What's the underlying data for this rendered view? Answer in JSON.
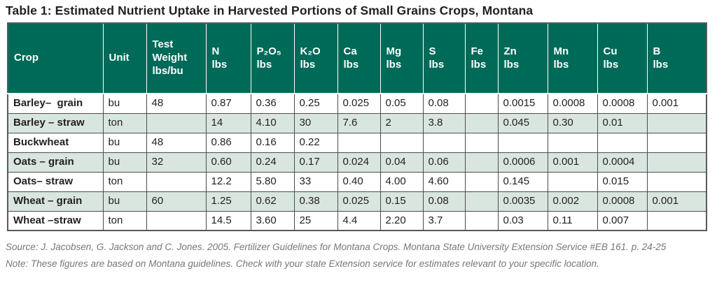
{
  "title": "Table 1: Estimated Nutrient Uptake in Harvested Portions of Small Grains Crops, Montana",
  "colors": {
    "header_bg": "#006a58",
    "stripe_bg": "#d9e6e0",
    "grid_border": "#4c4c4e",
    "outer_border": "#58595b",
    "title_text": "#231f20",
    "footer_text": "#77787b"
  },
  "table": {
    "columns": [
      {
        "id": "crop",
        "label": "Crop"
      },
      {
        "id": "unit",
        "label": "Unit"
      },
      {
        "id": "test_weight",
        "label": "Test\nWeight\nlbs/bu"
      },
      {
        "id": "n",
        "label": "N\nlbs"
      },
      {
        "id": "p2o5",
        "label": "P₂O₅\nlbs"
      },
      {
        "id": "k2o",
        "label": "K₂O\nlbs"
      },
      {
        "id": "ca",
        "label": "Ca\nlbs"
      },
      {
        "id": "mg",
        "label": "Mg\nlbs"
      },
      {
        "id": "s",
        "label": "S\nlbs"
      },
      {
        "id": "fe",
        "label": "Fe\nlbs"
      },
      {
        "id": "zn",
        "label": "Zn\nlbs"
      },
      {
        "id": "mn",
        "label": "Mn\nlbs"
      },
      {
        "id": "cu",
        "label": "Cu\nlbs"
      },
      {
        "id": "b",
        "label": "B\nlbs"
      }
    ],
    "rows": [
      {
        "cells": [
          "Barley–  grain",
          "bu",
          "48",
          "0.87",
          "0.36",
          "0.25",
          "0.025",
          "0.05",
          "0.08",
          "",
          "0.0015",
          "0.0008",
          "0.0008",
          "0.001"
        ]
      },
      {
        "cells": [
          "Barley – straw",
          "ton",
          "",
          "14",
          "4.10",
          "30",
          "7.6",
          "2",
          "3.8",
          "",
          "0.045",
          "0.30",
          "0.01",
          ""
        ]
      },
      {
        "cells": [
          "Buckwheat",
          "bu",
          "48",
          "0.86",
          "0.16",
          "0.22",
          "",
          "",
          "",
          "",
          "",
          "",
          "",
          ""
        ]
      },
      {
        "cells": [
          "Oats – grain",
          "bu",
          "32",
          "0.60",
          "0.24",
          "0.17",
          "0.024",
          "0.04",
          "0.06",
          "",
          "0.0006",
          "0.001",
          "0.0004",
          ""
        ]
      },
      {
        "cells": [
          "Oats– straw",
          "ton",
          "",
          "12.2",
          "5.80",
          "33",
          "0.40",
          "4.00",
          "4.60",
          "",
          "0.145",
          "",
          "0.015",
          ""
        ]
      },
      {
        "cells": [
          "Wheat – grain",
          "bu",
          "60",
          "1.25",
          "0.62",
          "0.38",
          "0.025",
          "0.15",
          "0.08",
          "",
          "0.0035",
          "0.002",
          "0.0008",
          "0.001"
        ]
      },
      {
        "cells": [
          "Wheat –straw",
          "ton",
          "",
          "14.5",
          "3.60",
          "25",
          "4.4",
          "2.20",
          "3.7",
          "",
          "0.03",
          "0.11",
          "0.007",
          ""
        ]
      }
    ]
  },
  "footer": {
    "source": "Source: J. Jacobsen, G. Jackson and C. Jones. 2005. Fertilizer Guidelines for Montana Crops. Montana State University Extension Service #EB 161. p. 24-25",
    "note": "Note: These figures are based on Montana guidelines. Check with your state Extension service for estimates relevant to your specific location."
  }
}
